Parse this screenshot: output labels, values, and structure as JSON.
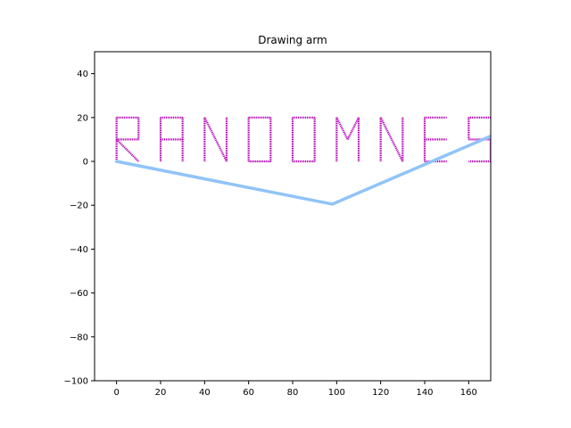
{
  "chart_data": {
    "type": "line",
    "title": "Drawing arm",
    "xlabel": "",
    "ylabel": "",
    "xlim": [
      -10,
      170
    ],
    "ylim": [
      -100,
      50
    ],
    "xticks": [
      0,
      20,
      40,
      60,
      80,
      100,
      120,
      140,
      160
    ],
    "yticks": [
      -100,
      -80,
      -60,
      -40,
      -20,
      0,
      20,
      40
    ],
    "grid": false,
    "colors": {
      "arm": "#90c4f8",
      "letters": "#b400b4"
    },
    "arm": {
      "x": [
        0,
        98,
        170
      ],
      "y": [
        0,
        -19.5,
        11.5
      ]
    },
    "drawn_text": "RANDOMNES",
    "letter_strokes": [
      {
        "letter": "R",
        "segments": [
          [
            0,
            0,
            0,
            20
          ],
          [
            0,
            20,
            10,
            20
          ],
          [
            10,
            20,
            10,
            10
          ],
          [
            10,
            10,
            0,
            10
          ],
          [
            0,
            10,
            10,
            0
          ]
        ]
      },
      {
        "letter": "A",
        "segments": [
          [
            20,
            0,
            20,
            20
          ],
          [
            20,
            20,
            30,
            20
          ],
          [
            30,
            20,
            30,
            0
          ],
          [
            20,
            10,
            30,
            10
          ]
        ]
      },
      {
        "letter": "N",
        "segments": [
          [
            40,
            0,
            40,
            20
          ],
          [
            40,
            20,
            50,
            0
          ],
          [
            50,
            0,
            50,
            20
          ]
        ]
      },
      {
        "letter": "D",
        "segments": [
          [
            60,
            0,
            60,
            20
          ],
          [
            60,
            20,
            70,
            20
          ],
          [
            70,
            20,
            70,
            0
          ],
          [
            70,
            0,
            60,
            0
          ]
        ]
      },
      {
        "letter": "O",
        "segments": [
          [
            90,
            0,
            90,
            20
          ],
          [
            90,
            20,
            90,
            20
          ],
          [
            80,
            20,
            90,
            20
          ],
          [
            80,
            0,
            80,
            20
          ],
          [
            80,
            0,
            90,
            0
          ]
        ]
      },
      {
        "letter": "M",
        "segments": [
          [
            100,
            0,
            100,
            20
          ],
          [
            100,
            20,
            105,
            10
          ],
          [
            105,
            10,
            110,
            20
          ],
          [
            110,
            20,
            110,
            0
          ]
        ]
      },
      {
        "letter": "N",
        "segments": [
          [
            120,
            0,
            120,
            20
          ],
          [
            120,
            20,
            130,
            0
          ],
          [
            130,
            0,
            130,
            20
          ]
        ]
      },
      {
        "letter": "E",
        "segments": [
          [
            140,
            0,
            140,
            20
          ],
          [
            140,
            20,
            150,
            20
          ],
          [
            140,
            10,
            150,
            10
          ],
          [
            140,
            0,
            150,
            0
          ]
        ]
      },
      {
        "letter": "S",
        "segments": [
          [
            170,
            20,
            160,
            20
          ],
          [
            160,
            20,
            160,
            10
          ],
          [
            160,
            10,
            170,
            10
          ],
          [
            170,
            10,
            170,
            0
          ],
          [
            170,
            0,
            160,
            0
          ]
        ]
      }
    ]
  }
}
